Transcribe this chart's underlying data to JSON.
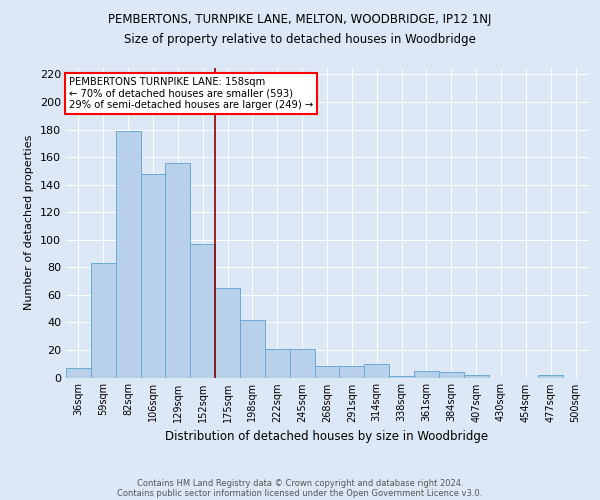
{
  "title": "PEMBERTONS, TURNPIKE LANE, MELTON, WOODBRIDGE, IP12 1NJ",
  "subtitle": "Size of property relative to detached houses in Woodbridge",
  "xlabel": "Distribution of detached houses by size in Woodbridge",
  "ylabel": "Number of detached properties",
  "categories": [
    "36sqm",
    "59sqm",
    "82sqm",
    "106sqm",
    "129sqm",
    "152sqm",
    "175sqm",
    "198sqm",
    "222sqm",
    "245sqm",
    "268sqm",
    "291sqm",
    "314sqm",
    "338sqm",
    "361sqm",
    "384sqm",
    "407sqm",
    "430sqm",
    "454sqm",
    "477sqm",
    "500sqm"
  ],
  "values": [
    7,
    83,
    179,
    148,
    156,
    97,
    65,
    42,
    21,
    21,
    8,
    8,
    10,
    1,
    5,
    4,
    2,
    0,
    0,
    2,
    0
  ],
  "bar_color": "#b8d0ea",
  "bar_edge_color": "#6aaad4",
  "background_color": "#dce8f5",
  "plot_bg_color": "#dce8f5",
  "red_line_x": 5.5,
  "annotation_title": "PEMBERTONS TURNPIKE LANE: 158sqm",
  "annotation_line1": "← 70% of detached houses are smaller (593)",
  "annotation_line2": "29% of semi-detached houses are larger (249) →",
  "footer1": "Contains HM Land Registry data © Crown copyright and database right 2024.",
  "footer2": "Contains public sector information licensed under the Open Government Licence v3.0.",
  "ylim": [
    0,
    225
  ],
  "yticks": [
    0,
    20,
    40,
    60,
    80,
    100,
    120,
    140,
    160,
    180,
    200,
    220
  ]
}
